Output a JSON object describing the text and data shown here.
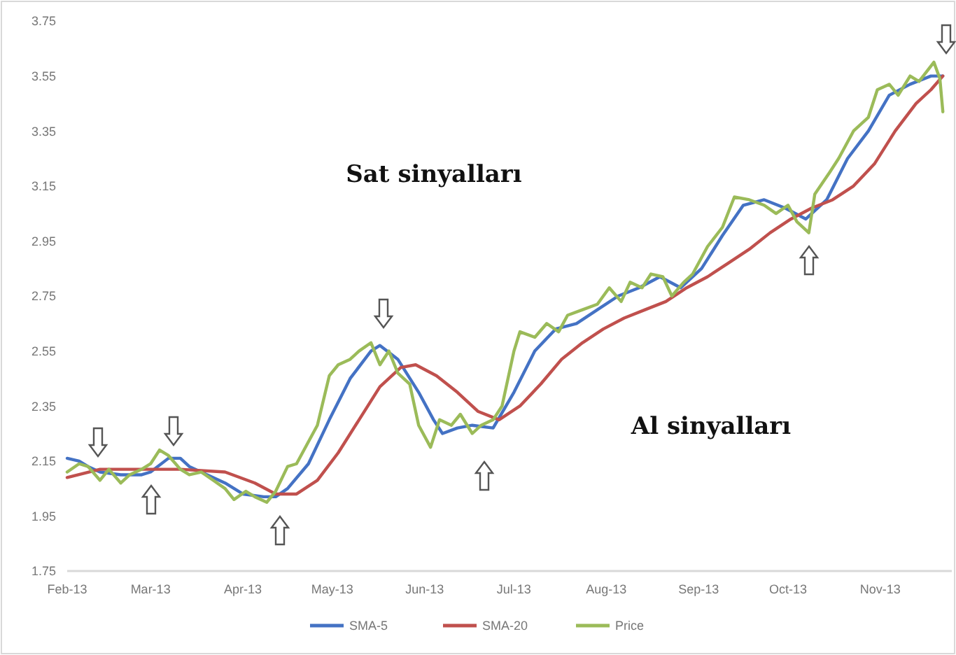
{
  "chart_data": {
    "type": "line",
    "annotations": [
      "Sat sinyalları",
      "Al sinyalları"
    ],
    "xlim": [
      "2013-02-01",
      "2013-11-25"
    ],
    "xticks": [
      {
        "value": "2013-02-01",
        "label": "Feb-13"
      },
      {
        "value": "2013-03-01",
        "label": "Mar-13"
      },
      {
        "value": "2013-04-01",
        "label": "Apr-13"
      },
      {
        "value": "2013-05-01",
        "label": "May-13"
      },
      {
        "value": "2013-06-01",
        "label": "Jun-13"
      },
      {
        "value": "2013-07-01",
        "label": "Jul-13"
      },
      {
        "value": "2013-08-01",
        "label": "Aug-13"
      },
      {
        "value": "2013-09-01",
        "label": "Sep-13"
      },
      {
        "value": "2013-10-01",
        "label": "Oct-13"
      },
      {
        "value": "2013-11-01",
        "label": "Nov-13"
      }
    ],
    "ylim": [
      1.75,
      3.75
    ],
    "yticks": [
      {
        "value": 1.75,
        "label": "1.75"
      },
      {
        "value": 1.95,
        "label": "1.95"
      },
      {
        "value": 2.15,
        "label": "2.15"
      },
      {
        "value": 2.35,
        "label": "2.35"
      },
      {
        "value": 2.55,
        "label": "2.55"
      },
      {
        "value": 2.75,
        "label": "2.75"
      },
      {
        "value": 2.95,
        "label": "2.95"
      },
      {
        "value": 3.15,
        "label": "3.15"
      },
      {
        "value": 3.35,
        "label": "3.35"
      },
      {
        "value": 3.55,
        "label": "3.55"
      },
      {
        "value": 3.75,
        "label": "3.75"
      }
    ],
    "grid": false,
    "legend": "bottom",
    "line_style": "solid",
    "marker": "none",
    "series": [
      {
        "name": "SMA-5",
        "color": "#4472c4",
        "x": [
          "2013-02-01",
          "2013-02-05",
          "2013-02-08",
          "2013-02-12",
          "2013-02-19",
          "2013-02-26",
          "2013-03-01",
          "2013-03-07",
          "2013-03-11",
          "2013-03-14",
          "2013-03-20",
          "2013-03-26",
          "2013-04-01",
          "2013-04-08",
          "2013-04-12",
          "2013-04-16",
          "2013-04-23",
          "2013-04-30",
          "2013-05-07",
          "2013-05-14",
          "2013-05-17",
          "2013-05-23",
          "2013-05-30",
          "2013-06-04",
          "2013-06-07",
          "2013-06-12",
          "2013-06-17",
          "2013-06-24",
          "2013-07-01",
          "2013-07-08",
          "2013-07-15",
          "2013-07-22",
          "2013-07-29",
          "2013-08-05",
          "2013-08-12",
          "2013-08-19",
          "2013-08-26",
          "2013-09-02",
          "2013-09-09",
          "2013-09-16",
          "2013-09-23",
          "2013-09-30",
          "2013-10-07",
          "2013-10-14",
          "2013-10-21",
          "2013-10-28",
          "2013-11-04",
          "2013-11-11",
          "2013-11-18",
          "2013-11-22"
        ],
        "values": [
          2.16,
          2.15,
          2.13,
          2.11,
          2.1,
          2.1,
          2.11,
          2.16,
          2.16,
          2.13,
          2.1,
          2.07,
          2.03,
          2.02,
          2.02,
          2.05,
          2.14,
          2.3,
          2.45,
          2.55,
          2.57,
          2.52,
          2.4,
          2.3,
          2.25,
          2.27,
          2.28,
          2.27,
          2.4,
          2.55,
          2.63,
          2.65,
          2.7,
          2.75,
          2.78,
          2.82,
          2.78,
          2.85,
          2.97,
          3.08,
          3.1,
          3.07,
          3.03,
          3.1,
          3.25,
          3.35,
          3.48,
          3.52,
          3.55,
          3.55
        ]
      },
      {
        "name": "SMA-20",
        "color": "#c0504d",
        "x": [
          "2013-02-01",
          "2013-02-12",
          "2013-02-26",
          "2013-03-11",
          "2013-03-26",
          "2013-04-05",
          "2013-04-12",
          "2013-04-19",
          "2013-04-26",
          "2013-05-03",
          "2013-05-10",
          "2013-05-17",
          "2013-05-24",
          "2013-05-29",
          "2013-06-05",
          "2013-06-12",
          "2013-06-19",
          "2013-06-26",
          "2013-07-03",
          "2013-07-10",
          "2013-07-17",
          "2013-07-24",
          "2013-07-31",
          "2013-08-07",
          "2013-08-14",
          "2013-08-21",
          "2013-08-28",
          "2013-09-04",
          "2013-09-11",
          "2013-09-18",
          "2013-09-25",
          "2013-10-02",
          "2013-10-09",
          "2013-10-16",
          "2013-10-23",
          "2013-10-30",
          "2013-11-06",
          "2013-11-13",
          "2013-11-18",
          "2013-11-22"
        ],
        "values": [
          2.09,
          2.12,
          2.12,
          2.12,
          2.11,
          2.07,
          2.03,
          2.03,
          2.08,
          2.18,
          2.3,
          2.42,
          2.49,
          2.5,
          2.46,
          2.4,
          2.33,
          2.3,
          2.35,
          2.43,
          2.52,
          2.58,
          2.63,
          2.67,
          2.7,
          2.73,
          2.78,
          2.82,
          2.87,
          2.92,
          2.98,
          3.03,
          3.07,
          3.1,
          3.15,
          3.23,
          3.35,
          3.45,
          3.5,
          3.55
        ]
      },
      {
        "name": "Price",
        "color": "#9bbb59",
        "x": [
          "2013-02-01",
          "2013-02-05",
          "2013-02-08",
          "2013-02-12",
          "2013-02-15",
          "2013-02-19",
          "2013-02-22",
          "2013-02-26",
          "2013-03-01",
          "2013-03-04",
          "2013-03-07",
          "2013-03-11",
          "2013-03-14",
          "2013-03-18",
          "2013-03-22",
          "2013-03-26",
          "2013-03-29",
          "2013-04-02",
          "2013-04-05",
          "2013-04-09",
          "2013-04-12",
          "2013-04-16",
          "2013-04-19",
          "2013-04-23",
          "2013-04-26",
          "2013-04-30",
          "2013-05-03",
          "2013-05-07",
          "2013-05-10",
          "2013-05-14",
          "2013-05-17",
          "2013-05-20",
          "2013-05-23",
          "2013-05-27",
          "2013-05-30",
          "2013-06-03",
          "2013-06-06",
          "2013-06-10",
          "2013-06-13",
          "2013-06-17",
          "2013-06-20",
          "2013-06-24",
          "2013-06-27",
          "2013-07-01",
          "2013-07-03",
          "2013-07-08",
          "2013-07-12",
          "2013-07-16",
          "2013-07-19",
          "2013-07-24",
          "2013-07-29",
          "2013-08-02",
          "2013-08-06",
          "2013-08-09",
          "2013-08-13",
          "2013-08-16",
          "2013-08-20",
          "2013-08-23",
          "2013-08-27",
          "2013-08-30",
          "2013-09-04",
          "2013-09-09",
          "2013-09-13",
          "2013-09-18",
          "2013-09-23",
          "2013-09-27",
          "2013-10-01",
          "2013-10-04",
          "2013-10-08",
          "2013-10-10",
          "2013-10-15",
          "2013-10-18",
          "2013-10-23",
          "2013-10-28",
          "2013-10-31",
          "2013-11-04",
          "2013-11-07",
          "2013-11-11",
          "2013-11-14",
          "2013-11-19",
          "2013-11-21",
          "2013-11-22"
        ],
        "values": [
          2.11,
          2.14,
          2.13,
          2.08,
          2.12,
          2.07,
          2.1,
          2.12,
          2.14,
          2.19,
          2.17,
          2.12,
          2.1,
          2.11,
          2.08,
          2.05,
          2.01,
          2.04,
          2.02,
          2.0,
          2.04,
          2.13,
          2.14,
          2.22,
          2.28,
          2.46,
          2.5,
          2.52,
          2.55,
          2.58,
          2.5,
          2.55,
          2.47,
          2.43,
          2.28,
          2.2,
          2.3,
          2.28,
          2.32,
          2.25,
          2.28,
          2.3,
          2.35,
          2.55,
          2.62,
          2.6,
          2.65,
          2.62,
          2.68,
          2.7,
          2.72,
          2.78,
          2.73,
          2.8,
          2.78,
          2.83,
          2.82,
          2.75,
          2.8,
          2.83,
          2.93,
          3.0,
          3.11,
          3.1,
          3.08,
          3.05,
          3.08,
          3.02,
          2.98,
          3.12,
          3.2,
          3.25,
          3.35,
          3.4,
          3.5,
          3.52,
          3.48,
          3.55,
          3.53,
          3.6,
          3.54,
          3.42
        ]
      }
    ]
  }
}
